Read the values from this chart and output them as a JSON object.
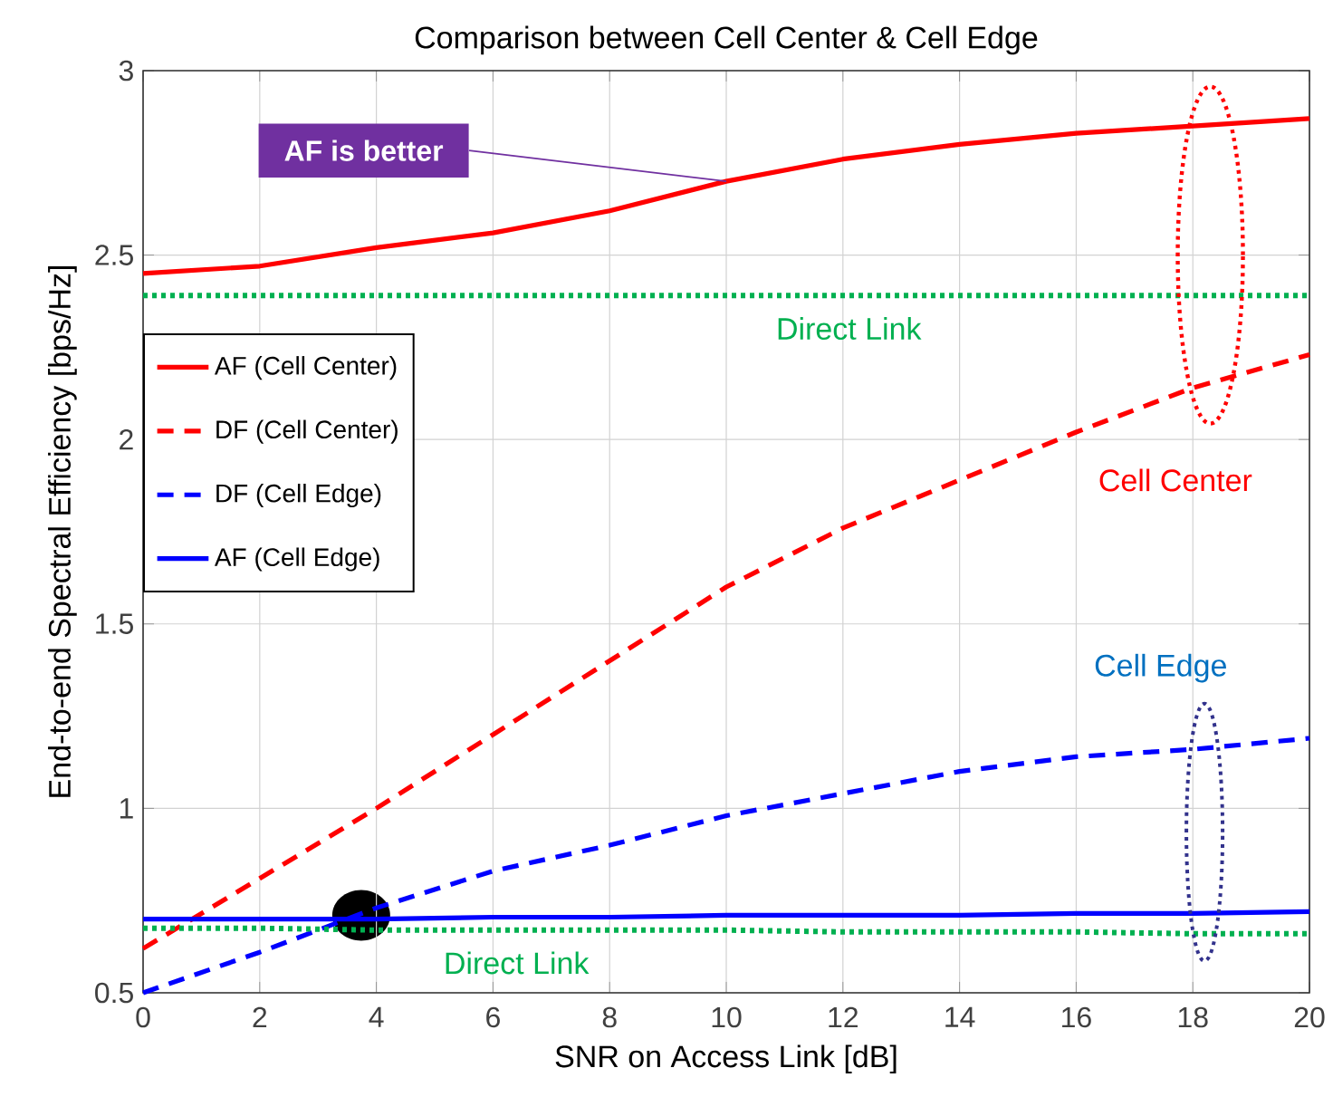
{
  "chart_data": {
    "type": "line",
    "title": "Comparison between Cell Center & Cell Edge",
    "xlabel": "SNR on Access Link  [dB]",
    "ylabel": "End-to-end Spectral Efficiency [bps/Hz]",
    "x": [
      0,
      2,
      4,
      6,
      8,
      10,
      12,
      14,
      16,
      18,
      20
    ],
    "series": [
      {
        "name": "AF (Cell Center)",
        "color": "#ff0000",
        "line_style": "solid",
        "values": [
          2.45,
          2.47,
          2.52,
          2.56,
          2.62,
          2.7,
          2.76,
          2.8,
          2.83,
          2.85,
          2.87
        ]
      },
      {
        "name": "DF (Cell Center)",
        "color": "#ff0000",
        "line_style": "dashed",
        "values": [
          0.62,
          0.81,
          1.0,
          1.2,
          1.4,
          1.6,
          1.76,
          1.89,
          2.02,
          2.14,
          2.23
        ]
      },
      {
        "name": "DF (Cell Edge)",
        "color": "#0000ff",
        "line_style": "dashed",
        "values": [
          0.5,
          0.61,
          0.73,
          0.83,
          0.9,
          0.98,
          1.04,
          1.1,
          1.14,
          1.16,
          1.19
        ]
      },
      {
        "name": "AF (Cell Edge)",
        "color": "#0000ff",
        "line_style": "solid",
        "values": [
          0.7,
          0.7,
          0.7,
          0.705,
          0.705,
          0.71,
          0.71,
          0.71,
          0.715,
          0.715,
          0.72
        ]
      },
      {
        "color": "#00b050",
        "line_style": "dotted",
        "values": [
          2.39,
          2.39,
          2.39,
          2.39,
          2.39,
          2.39,
          2.39,
          2.39,
          2.39,
          2.39,
          2.39
        ]
      },
      {
        "color": "#00b050",
        "line_style": "dotted",
        "values": [
          0.675,
          0.675,
          0.67,
          0.67,
          0.67,
          0.67,
          0.665,
          0.665,
          0.665,
          0.66,
          0.66
        ]
      }
    ],
    "xlim": [
      0,
      20
    ],
    "ylim": [
      0.5,
      3
    ],
    "xticks": [
      0,
      2,
      4,
      6,
      8,
      10,
      12,
      14,
      16,
      18,
      20
    ],
    "yticks": [
      0.5,
      1,
      1.5,
      2,
      2.5,
      3
    ],
    "grid": true,
    "legend": "left",
    "marker": "none",
    "annotations": [
      {
        "text": "AF is better",
        "x": 10,
        "y": 2.7
      },
      {
        "text": "Direct Link",
        "x": 12.1,
        "y": 2.39
      },
      "Cell Center",
      "Cell Edge",
      {
        "text": "Direct Link",
        "x": 6.4,
        "y": 0.67
      }
    ]
  }
}
